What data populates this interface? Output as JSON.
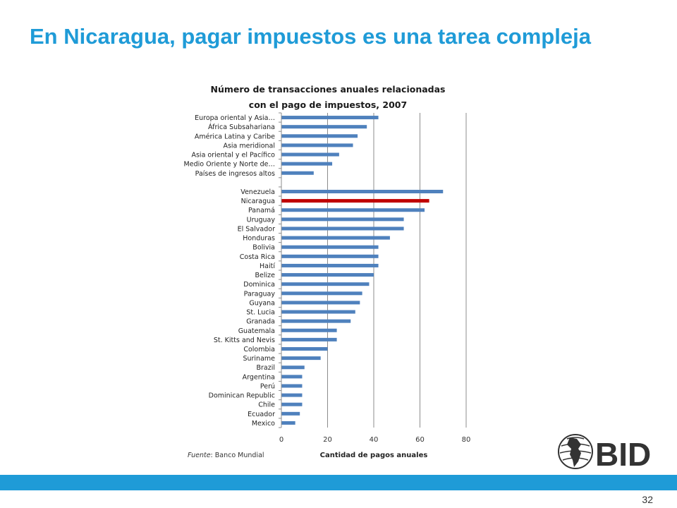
{
  "slide": {
    "title": "En Nicaragua, pagar impuestos es una tarea compleja",
    "page_number": "32"
  },
  "source": {
    "label": "Fuente",
    "text": ": Banco Mundial"
  },
  "logo": {
    "text": "BID",
    "icon": "globe-americas-icon"
  },
  "colors": {
    "title": "#1f9bd7",
    "bar": "#4f81bd",
    "highlight": "#c00000",
    "bottom_bar": "#1f9bd7"
  },
  "chart_data": {
    "type": "bar",
    "orientation": "horizontal",
    "title": "Número de transacciones anuales relacionadas\ncon el pago de impuestos, 2007",
    "xlabel": "Cantidad de pagos anuales",
    "ylabel": "",
    "xlim": [
      0,
      80
    ],
    "xticks": [
      0,
      20,
      40,
      60,
      80
    ],
    "grid": true,
    "highlight_category": "Nicaragua",
    "categories": [
      "Europa oriental y Asia…",
      "África Subsahariana",
      "América Latina y Caribe",
      "Asia meridional",
      "Asia oriental y el Pacífico",
      "Medio Oriente y Norte de…",
      "Países de ingresos altos",
      "",
      "Venezuela",
      "Nicaragua",
      "Panamá",
      "Uruguay",
      "El Salvador",
      "Honduras",
      "Bolivia",
      "Costa Rica",
      "Haití",
      "Belize",
      "Dominica",
      "Paraguay",
      "Guyana",
      "St. Lucia",
      "Granada",
      "Guatemala",
      "St. Kitts and Nevis",
      "Colombia",
      "Suriname",
      "Brazil",
      "Argentina",
      "Perú",
      "Dominican Republic",
      "Chile",
      "Ecuador",
      "Mexico"
    ],
    "values": [
      42,
      37,
      33,
      31,
      25,
      22,
      14,
      null,
      70,
      64,
      62,
      53,
      53,
      47,
      42,
      42,
      42,
      40,
      38,
      35,
      34,
      32,
      30,
      24,
      24,
      20,
      17,
      10,
      9,
      9,
      9,
      9,
      8,
      6
    ]
  }
}
